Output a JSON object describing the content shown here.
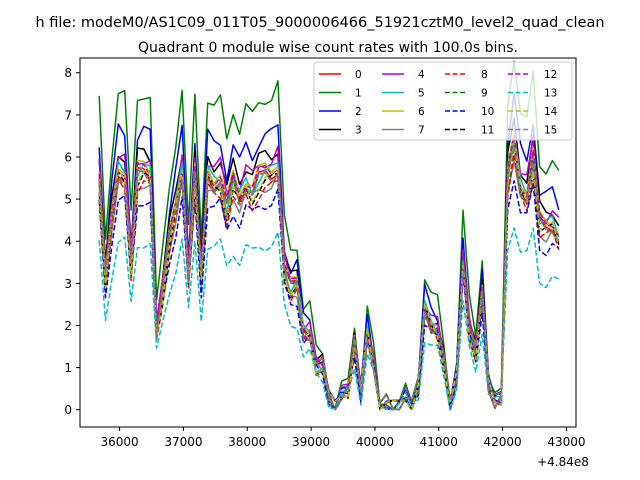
{
  "chart_data": {
    "type": "line",
    "suptitle": "h file: modeM0/AS1C09_011T05_9000006466_51921cztM0_level2_quad_clean",
    "title": "Quadrant 0 module wise count rates with 100.0s bins.",
    "xlabel": "",
    "ylabel": "",
    "x_offset_label": "+4.84e8",
    "xlim": [
      35380,
      43150
    ],
    "ylim": [
      -0.41,
      8.35
    ],
    "xticks": [
      36000,
      37000,
      38000,
      39000,
      40000,
      41000,
      42000,
      43000
    ],
    "yticks": [
      0,
      1,
      2,
      3,
      4,
      5,
      6,
      7,
      8
    ],
    "legend": "top-right",
    "x": [
      35680,
      35780,
      35880,
      35980,
      36080,
      36180,
      36280,
      36380,
      36480,
      36580,
      36680,
      36780,
      36880,
      36980,
      37080,
      37180,
      37280,
      37380,
      37480,
      37580,
      37680,
      37780,
      37880,
      37980,
      38080,
      38180,
      38280,
      38380,
      38480,
      38580,
      38680,
      38780,
      38880,
      38980,
      39080,
      39180,
      39280,
      39380,
      39480,
      39580,
      39680,
      39780,
      39880,
      39980,
      40080,
      40180,
      40280,
      40380,
      40480,
      40580,
      40680,
      40780,
      40880,
      40980,
      41080,
      41180,
      41280,
      41380,
      41480,
      41580,
      41680,
      41780,
      41880,
      41980,
      42080,
      42180,
      42280,
      42380,
      42480,
      42580,
      42680,
      42780,
      42880
    ],
    "base": [
      5.7,
      3.2,
      4.8,
      5.9,
      5.8,
      3.6,
      5.8,
      5.9,
      5.8,
      1.9,
      3.0,
      4.2,
      5.0,
      5.9,
      3.3,
      5.8,
      3.3,
      5.8,
      5.6,
      5.7,
      5.0,
      5.6,
      5.2,
      5.6,
      5.4,
      5.7,
      5.8,
      5.8,
      6.0,
      3.5,
      3.0,
      3.1,
      1.9,
      1.9,
      1.1,
      1.1,
      0.3,
      0.05,
      0.4,
      0.5,
      1.6,
      0.4,
      1.9,
      1.1,
      0.05,
      0.2,
      0.05,
      0.1,
      0.35,
      0.1,
      0.6,
      2.5,
      2.1,
      2.0,
      1.2,
      0.1,
      0.8,
      3.6,
      2.0,
      1.4,
      2.9,
      0.6,
      0.2,
      0.3,
      5.7,
      6.6,
      5.5,
      5.3,
      6.2,
      4.6,
      4.5,
      4.6,
      4.3
    ],
    "series": [
      {
        "name": "0",
        "color": "#ff0000",
        "dash": "solid",
        "scale": 0.96
      },
      {
        "name": "1",
        "color": "#008000",
        "dash": "solid",
        "scale": 1.28
      },
      {
        "name": "2",
        "color": "#0000ff",
        "dash": "solid",
        "scale": 1.12
      },
      {
        "name": "3",
        "color": "#000000",
        "dash": "solid",
        "scale": 1.04
      },
      {
        "name": "4",
        "color": "#bf00bf",
        "dash": "solid",
        "scale": 1.02
      },
      {
        "name": "5",
        "color": "#00bfbf",
        "dash": "solid",
        "scale": 0.97
      },
      {
        "name": "6",
        "color": "#bfbf00",
        "dash": "solid",
        "scale": 0.99
      },
      {
        "name": "7",
        "color": "#808080",
        "dash": "solid",
        "scale": 0.92
      },
      {
        "name": "8",
        "color": "#ff0000",
        "dash": "dashed",
        "scale": 0.9
      },
      {
        "name": "9",
        "color": "#008000",
        "dash": "dashed",
        "scale": 0.95
      },
      {
        "name": "10",
        "color": "#0000ff",
        "dash": "dashed",
        "scale": 0.85
      },
      {
        "name": "11",
        "color": "#000000",
        "dash": "dashed",
        "scale": 0.93
      },
      {
        "name": "12",
        "color": "#bf00bf",
        "dash": "dashed",
        "scale": 0.98
      },
      {
        "name": "13",
        "color": "#00bfbf",
        "dash": "dashed",
        "scale": 0.68
      },
      {
        "name": "14",
        "color": "#bfbf00",
        "dash": "dashed",
        "scale": 0.94
      },
      {
        "name": "15",
        "color": "#808080",
        "dash": "dashed",
        "scale": 0.95
      }
    ]
  }
}
